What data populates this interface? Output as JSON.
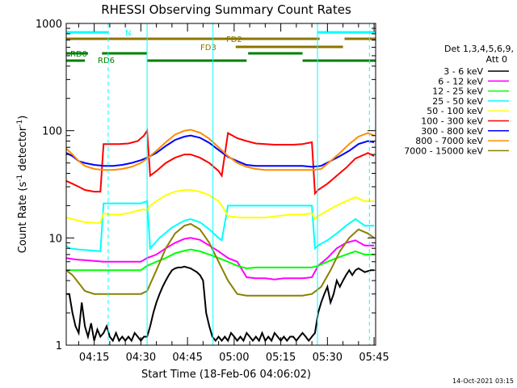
{
  "chart_data": {
    "type": "line",
    "title": "RHESSI Observing Summary Count Rates",
    "xlabel": "Start Time (18-Feb-06 04:06:02)",
    "ylabel_main": "Count Rate (s",
    "ylabel_sup1": "-1",
    "ylabel_mid": " detector",
    "ylabel_sup2": "-1",
    "ylabel_end": ")",
    "yscale": "log",
    "ylim": [
      1,
      1000
    ],
    "xlim_minutes": [
      246.0,
      345.5
    ],
    "x_ticks": [
      {
        "label": "04:15",
        "minutes": 255
      },
      {
        "label": "04:30",
        "minutes": 270
      },
      {
        "label": "04:45",
        "minutes": 285
      },
      {
        "label": "05:00",
        "minutes": 300
      },
      {
        "label": "05:15",
        "minutes": 315
      },
      {
        "label": "05:30",
        "minutes": 330
      },
      {
        "label": "05:45",
        "minutes": 345
      }
    ],
    "y_ticks": [
      {
        "label": "1",
        "value": 1
      },
      {
        "label": "10",
        "value": 10
      },
      {
        "label": "100",
        "value": 100
      },
      {
        "label": "1000",
        "value": 1000
      }
    ],
    "legend_header": [
      "Det 1,3,4,5,6,9,",
      "Att 0"
    ],
    "legend_position": "right",
    "footer_date": "14-Oct-2021 03:15",
    "flag_labels": {
      "N": "N",
      "FD2": "FD2",
      "FD3": "FD3",
      "RD0": "RD0",
      "RD6": "RD6"
    },
    "flag_colors": {
      "night": "#00ffff",
      "fd": "#8b7500",
      "rd": "#007f00"
    },
    "night_intervals": [
      [
        246.0,
        259.5
      ],
      [
        326.8,
        345.5
      ]
    ],
    "sector_boundaries": [
      246.0,
      272.0,
      293.2,
      326.8
    ],
    "dashed_lines": [
      259.5,
      343.5
    ],
    "series": [
      {
        "name": "3 - 6 keV",
        "color": "#000000",
        "x": [
          246,
          247,
          248,
          249,
          250,
          251,
          252,
          253,
          254,
          255,
          256,
          257,
          258,
          259,
          260,
          261,
          262,
          263,
          264,
          265,
          266,
          267,
          268,
          269,
          270,
          271,
          272,
          273,
          274,
          275,
          276,
          277,
          278,
          279,
          280,
          281,
          282,
          283,
          284,
          285,
          286,
          287,
          288,
          289,
          290,
          291,
          292,
          293,
          294,
          295,
          296,
          297,
          298,
          299,
          300,
          301,
          302,
          303,
          304,
          305,
          306,
          307,
          308,
          309,
          310,
          311,
          312,
          313,
          314,
          315,
          316,
          317,
          318,
          319,
          320,
          321,
          322,
          323,
          324,
          325,
          326,
          327,
          328,
          329,
          330,
          331,
          332,
          333,
          334,
          335,
          336,
          337,
          338,
          339,
          340,
          341,
          342,
          343,
          344,
          345
        ],
        "y": [
          3.0,
          3.0,
          2.0,
          1.5,
          1.3,
          2.5,
          1.5,
          1.2,
          1.6,
          1.1,
          1.4,
          1.2,
          1.3,
          1.5,
          1.2,
          1.1,
          1.3,
          1.1,
          1.2,
          1.1,
          1.2,
          1.1,
          1.3,
          1.2,
          1.1,
          1.2,
          1.2,
          1.5,
          2.0,
          2.5,
          3.0,
          3.5,
          4.0,
          4.5,
          5.0,
          5.2,
          5.3,
          5.3,
          5.4,
          5.3,
          5.2,
          5.0,
          4.8,
          4.5,
          4.0,
          2.0,
          1.5,
          1.2,
          1.1,
          1.2,
          1.1,
          1.2,
          1.1,
          1.3,
          1.2,
          1.1,
          1.2,
          1.1,
          1.3,
          1.2,
          1.1,
          1.2,
          1.1,
          1.3,
          1.1,
          1.2,
          1.1,
          1.3,
          1.2,
          1.1,
          1.2,
          1.1,
          1.2,
          1.2,
          1.1,
          1.2,
          1.3,
          1.2,
          1.1,
          1.2,
          1.3,
          2.0,
          2.5,
          3.0,
          3.5,
          2.5,
          3.0,
          4.0,
          3.5,
          4.0,
          4.5,
          5.0,
          4.5,
          5.0,
          5.2,
          5.0,
          4.8,
          4.9,
          5.0,
          5.0
        ]
      },
      {
        "name": "6 - 12 keV",
        "color": "#ff00ff",
        "x": [
          246,
          249,
          252,
          255,
          258,
          261,
          264,
          267,
          270,
          272,
          275,
          278,
          281,
          284,
          286,
          289,
          292,
          295,
          298,
          301,
          304,
          307,
          310,
          313,
          316,
          319,
          322,
          325,
          327,
          330,
          333,
          336,
          339,
          342,
          345
        ],
        "y": [
          6.5,
          6.3,
          6.2,
          6.1,
          6.0,
          6.0,
          6.0,
          6.0,
          6.0,
          6.5,
          7.0,
          8.0,
          9.0,
          9.8,
          10.0,
          9.6,
          8.5,
          7.5,
          6.5,
          6.0,
          4.3,
          4.2,
          4.2,
          4.1,
          4.2,
          4.2,
          4.2,
          4.3,
          5.5,
          6.5,
          8.0,
          9.0,
          9.5,
          8.5,
          8.5
        ]
      },
      {
        "name": "12 - 25 keV",
        "color": "#00ff00",
        "x": [
          246,
          249,
          252,
          255,
          258,
          261,
          264,
          267,
          270,
          272,
          275,
          278,
          281,
          284,
          286,
          289,
          292,
          295,
          298,
          301,
          304,
          307,
          310,
          313,
          316,
          319,
          322,
          325,
          327,
          330,
          333,
          336,
          339,
          342,
          345
        ],
        "y": [
          5.0,
          5.0,
          5.0,
          5.0,
          5.0,
          5.0,
          5.0,
          5.0,
          5.0,
          5.5,
          6.0,
          6.5,
          7.2,
          7.6,
          7.8,
          7.5,
          7.0,
          6.5,
          6.0,
          5.5,
          5.2,
          5.3,
          5.3,
          5.3,
          5.3,
          5.3,
          5.3,
          5.3,
          5.5,
          6.0,
          6.5,
          7.0,
          7.5,
          7.0,
          7.0
        ]
      },
      {
        "name": "25 - 50 keV",
        "color": "#00ffff",
        "x": [
          246,
          247,
          250,
          255,
          257,
          258,
          260,
          265,
          270,
          272,
          273,
          276,
          280,
          284,
          286,
          289,
          292,
          295,
          296,
          298,
          302,
          306,
          310,
          314,
          318,
          322,
          325,
          326,
          327,
          330,
          333,
          336,
          339,
          342,
          345
        ],
        "y": [
          8.5,
          8.0,
          7.8,
          7.6,
          7.5,
          21.0,
          21.0,
          21.0,
          21.0,
          22.0,
          8.0,
          10.0,
          12.5,
          14.5,
          15.0,
          14.0,
          12.0,
          10.0,
          9.5,
          20.0,
          20.0,
          20.0,
          20.0,
          20.0,
          20.0,
          20.0,
          20.0,
          8.0,
          8.5,
          9.5,
          11.0,
          13.0,
          15.0,
          13.0,
          13.0
        ]
      },
      {
        "name": "50 - 100 keV",
        "color": "#ffff00",
        "x": [
          246,
          248,
          250,
          252,
          255,
          257,
          258,
          260,
          263,
          266,
          269,
          271,
          272,
          273,
          275,
          278,
          281,
          284,
          286,
          289,
          292,
          295,
          296,
          298,
          302,
          306,
          310,
          314,
          318,
          322,
          325,
          326,
          327,
          330,
          333,
          336,
          339,
          342,
          345
        ],
        "y": [
          15.5,
          15.0,
          14.5,
          14.0,
          13.8,
          13.8,
          17.0,
          16.5,
          16.5,
          17.0,
          18.0,
          18.5,
          18.0,
          20.0,
          22.0,
          25.0,
          27.0,
          28.0,
          28.0,
          27.0,
          25.0,
          22.0,
          20.0,
          16.0,
          15.5,
          15.5,
          15.5,
          16.0,
          16.5,
          16.5,
          17.0,
          15.0,
          16.0,
          18.0,
          20.0,
          22.0,
          24.0,
          22.0,
          22.0
        ]
      },
      {
        "name": "100 - 300 keV",
        "color": "#ff0000",
        "x": [
          246,
          248,
          250,
          252,
          255,
          257,
          258,
          260,
          263,
          266,
          269,
          271,
          272,
          273,
          275,
          278,
          281,
          284,
          286,
          289,
          292,
          295,
          296,
          298,
          301,
          304,
          307,
          310,
          313,
          316,
          319,
          322,
          325,
          326,
          327,
          330,
          333,
          336,
          339,
          342,
          343,
          344,
          345
        ],
        "y": [
          34.0,
          32.0,
          30.0,
          28.0,
          27.0,
          27.0,
          75.0,
          75.0,
          75.0,
          76.0,
          80.0,
          90.0,
          100.0,
          38.0,
          42.0,
          50.0,
          56.0,
          60.0,
          60.0,
          56.0,
          50.0,
          42.0,
          38.0,
          95.0,
          85.0,
          80.0,
          76.0,
          75.0,
          74.0,
          74.0,
          74.0,
          75.0,
          78.0,
          26.0,
          28.0,
          32.0,
          38.0,
          45.0,
          55.0,
          60.0,
          62.0,
          60.0,
          58.0
        ]
      },
      {
        "name": "300 - 800 keV",
        "color": "#0000ff",
        "x": [
          246,
          248,
          250,
          252,
          255,
          258,
          261,
          264,
          267,
          270,
          272,
          275,
          278,
          281,
          284,
          286,
          289,
          292,
          295,
          298,
          301,
          304,
          307,
          310,
          313,
          316,
          319,
          322,
          325,
          328,
          331,
          334,
          337,
          340,
          343,
          345
        ],
        "y": [
          62.0,
          58.0,
          52.0,
          50.0,
          48.0,
          47.0,
          47.0,
          48.0,
          50.0,
          53.0,
          56.0,
          62.0,
          72.0,
          82.0,
          88.0,
          90.0,
          86.0,
          77.0,
          66.0,
          57.0,
          52.0,
          48.0,
          47.0,
          47.0,
          47.0,
          47.0,
          47.0,
          47.0,
          46.0,
          47.0,
          52.0,
          58.0,
          65.0,
          75.0,
          80.0,
          78.0
        ]
      },
      {
        "name": "800 - 7000 keV",
        "color": "#ff8c00",
        "x": [
          246,
          248,
          250,
          252,
          255,
          258,
          261,
          264,
          267,
          270,
          272,
          275,
          278,
          281,
          284,
          286,
          289,
          292,
          295,
          298,
          301,
          304,
          307,
          310,
          313,
          316,
          319,
          322,
          325,
          328,
          331,
          334,
          337,
          340,
          343,
          345
        ],
        "y": [
          68.0,
          60.0,
          52.0,
          47.0,
          44.0,
          43.0,
          43.0,
          44.0,
          46.0,
          50.0,
          55.0,
          65.0,
          78.0,
          92.0,
          100.0,
          102.0,
          96.0,
          84.0,
          70.0,
          58.0,
          50.0,
          46.0,
          44.0,
          43.0,
          43.0,
          43.0,
          43.0,
          43.0,
          43.0,
          44.0,
          52.0,
          62.0,
          75.0,
          88.0,
          95.0,
          90.0
        ]
      },
      {
        "name": "7000 - 15000 keV",
        "color": "#8b8000",
        "x": [
          246,
          248,
          250,
          252,
          255,
          258,
          261,
          264,
          267,
          270,
          272,
          275,
          278,
          281,
          284,
          286,
          289,
          292,
          295,
          298,
          301,
          304,
          307,
          310,
          313,
          316,
          319,
          322,
          325,
          328,
          331,
          334,
          337,
          340,
          343,
          345
        ],
        "y": [
          5.0,
          4.5,
          3.8,
          3.2,
          3.0,
          3.0,
          3.0,
          3.0,
          3.0,
          3.0,
          3.2,
          5.0,
          8.0,
          11.0,
          13.0,
          13.5,
          12.0,
          9.0,
          6.0,
          4.0,
          3.0,
          2.9,
          2.9,
          2.9,
          2.9,
          2.9,
          2.9,
          2.9,
          3.0,
          3.5,
          5.0,
          7.5,
          10.0,
          12.0,
          11.0,
          10.0
        ]
      }
    ]
  }
}
